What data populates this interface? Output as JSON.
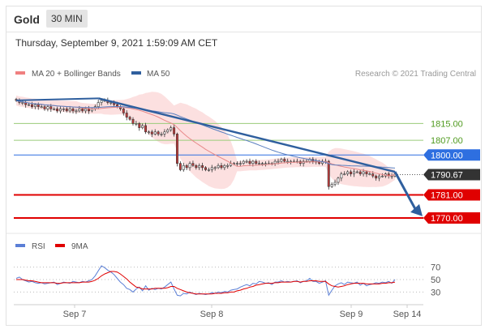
{
  "header": {
    "instrument": "Gold",
    "timeframe": "30 MIN"
  },
  "datetime": "Thursday, September 9, 2021 1:59:09 AM CET",
  "legend": {
    "items": [
      {
        "label": "MA 20 + Bollinger Bands",
        "color": "#f08080"
      },
      {
        "label": "MA 50",
        "color": "#2f5f9e"
      }
    ],
    "source": "Research © 2021 Trading Central"
  },
  "rsi_legend": {
    "items": [
      {
        "label": "RSI",
        "color": "#5b7fd6"
      },
      {
        "label": "9MA",
        "color": "#e00000"
      }
    ]
  },
  "colors": {
    "band": "#fbd6d6",
    "ma20": "#e88a8a",
    "ma50": "#5a7fc0",
    "trend": "#2f5f9e",
    "green_level": "#9acc7a",
    "green_text": "#4f9a1e",
    "blue_level": "#2e6fe0",
    "red_level": "#e00000",
    "current": "#333333"
  },
  "chart_data": [
    {
      "type": "candlestick",
      "y_range": [
        1765,
        1836
      ],
      "x_ticks": [
        "Sep 7",
        "Sep 8",
        "Sep 9",
        "Sep 14"
      ],
      "levels": [
        {
          "value": 1815.0,
          "label": "1815.00",
          "style": "green"
        },
        {
          "value": 1807.0,
          "label": "1807.00",
          "style": "green"
        },
        {
          "value": 1800.0,
          "label": "1800.00",
          "style": "blue"
        },
        {
          "value": 1790.67,
          "label": "1790.67",
          "style": "current"
        },
        {
          "value": 1781.0,
          "label": "1781.00",
          "style": "red"
        },
        {
          "value": 1770.0,
          "label": "1770.00",
          "style": "red"
        }
      ],
      "close": [
        1826,
        1825,
        1825,
        1824,
        1824,
        1823,
        1824,
        1823,
        1823,
        1822,
        1823,
        1822,
        1822,
        1821,
        1822,
        1822,
        1821,
        1822,
        1821,
        1821,
        1822,
        1821,
        1822,
        1821,
        1822,
        1823,
        1825,
        1826,
        1826,
        1825,
        1825,
        1824,
        1823,
        1822,
        1820,
        1818,
        1817,
        1815,
        1815,
        1813,
        1814,
        1811,
        1811,
        1810,
        1811,
        1810,
        1810,
        1811,
        1812,
        1813,
        1810,
        1796,
        1793,
        1795,
        1794,
        1796,
        1795,
        1794,
        1795,
        1794,
        1793,
        1793,
        1794,
        1794,
        1795,
        1794,
        1795,
        1795,
        1796,
        1796,
        1796,
        1796,
        1797,
        1797,
        1796,
        1797,
        1796,
        1796,
        1796,
        1796,
        1796,
        1796,
        1797,
        1797,
        1798,
        1797,
        1797,
        1797,
        1797,
        1797,
        1796,
        1797,
        1797,
        1798,
        1797,
        1797,
        1796,
        1797,
        1797,
        1785,
        1786,
        1787,
        1789,
        1791,
        1791,
        1792,
        1791,
        1792,
        1792,
        1791,
        1792,
        1791,
        1791,
        1790,
        1789,
        1790,
        1790,
        1791,
        1790,
        1790,
        1791
      ]
    },
    {
      "type": "line",
      "name": "RSI",
      "y_ticks": [
        70,
        50,
        30
      ],
      "y_range": [
        15,
        85
      ],
      "series": [
        {
          "name": "RSI",
          "values": [
            52,
            54,
            50,
            48,
            46,
            47,
            45,
            44,
            45,
            43,
            44,
            45,
            46,
            42,
            44,
            46,
            45,
            44,
            47,
            46,
            45,
            47,
            46,
            48,
            50,
            56,
            64,
            72,
            69,
            65,
            62,
            58,
            52,
            46,
            42,
            36,
            34,
            30,
            35,
            38,
            32,
            40,
            33,
            36,
            34,
            36,
            35,
            38,
            42,
            46,
            35,
            25,
            24,
            28,
            27,
            30,
            28,
            26,
            28,
            27,
            26,
            27,
            29,
            28,
            30,
            29,
            31,
            30,
            33,
            34,
            35,
            38,
            40,
            42,
            40,
            44,
            43,
            47,
            46,
            44,
            45,
            42,
            46,
            46,
            48,
            46,
            47,
            46,
            47,
            48,
            45,
            47,
            48,
            52,
            47,
            47,
            44,
            46,
            48,
            25,
            33,
            40,
            43,
            45,
            42,
            46,
            45,
            44,
            46,
            41,
            44,
            40,
            42,
            43,
            45,
            44,
            46,
            45,
            47,
            44,
            50
          ]
        },
        {
          "name": "9MA",
          "values": [
            50,
            50,
            50,
            49,
            48,
            48,
            47,
            46,
            45,
            45,
            45,
            45,
            45,
            44,
            44,
            45,
            45,
            45,
            45,
            45,
            45,
            46,
            46,
            46,
            47,
            49,
            52,
            56,
            59,
            61,
            63,
            63,
            62,
            59,
            55,
            51,
            46,
            42,
            38,
            37,
            35,
            35,
            35,
            35,
            36,
            36,
            36,
            36,
            37,
            39,
            39,
            36,
            34,
            32,
            30,
            29,
            28,
            27,
            27,
            27,
            27,
            27,
            27,
            28,
            28,
            28,
            29,
            29,
            30,
            30,
            32,
            33,
            35,
            36,
            38,
            39,
            41,
            42,
            43,
            44,
            44,
            44,
            45,
            45,
            46,
            46,
            46,
            46,
            47,
            47,
            46,
            47,
            47,
            48,
            48,
            48,
            47,
            47,
            47,
            43,
            40,
            39,
            38,
            39,
            40,
            42,
            43,
            44,
            44,
            44,
            44,
            43,
            43,
            43,
            43,
            43,
            44,
            44,
            45,
            45,
            46
          ]
        }
      ]
    }
  ]
}
